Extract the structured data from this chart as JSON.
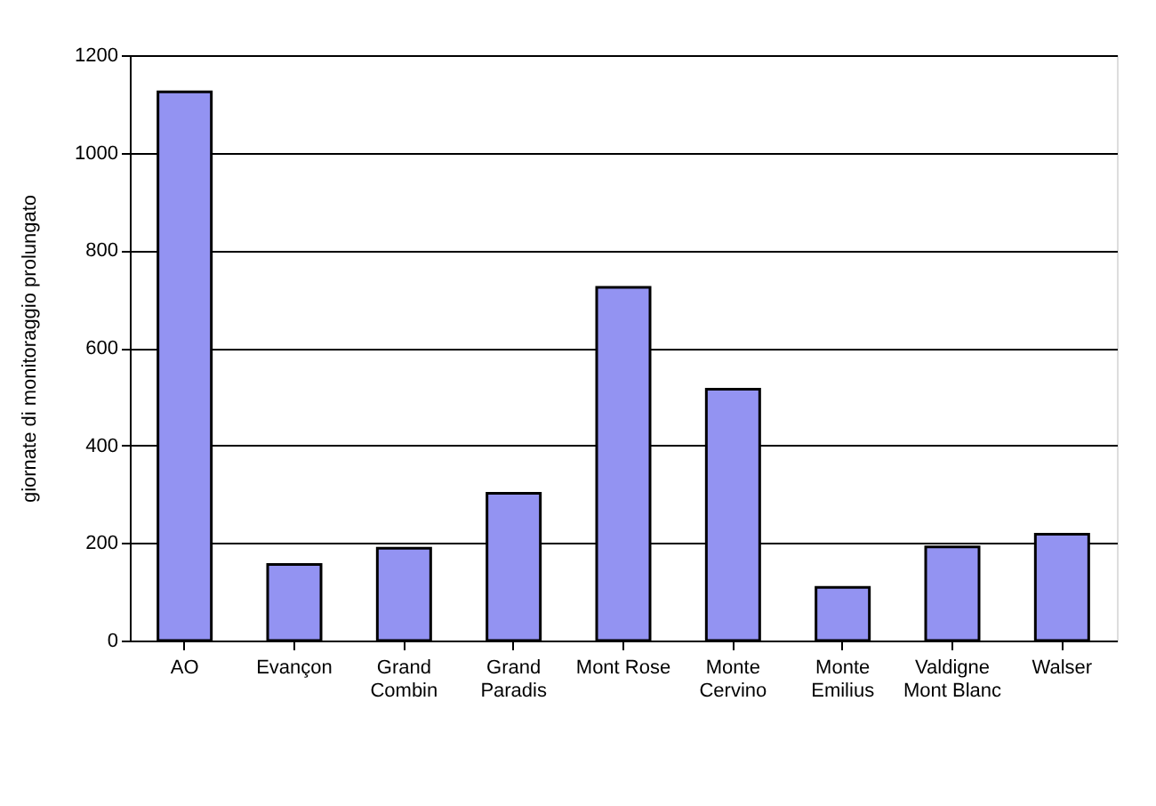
{
  "chart_data": {
    "type": "bar",
    "ylabel": "giornate di monitoraggio prolungato",
    "categories": [
      "AO",
      "Evançon",
      "Grand\nCombin",
      "Grand\nParadis",
      "Mont Rose",
      "Monte\nCervino",
      "Monte\nEmilius",
      "Valdigne\nMont Blanc",
      "Walser"
    ],
    "values": [
      1125,
      156,
      189,
      302,
      724,
      515,
      109,
      192,
      218
    ],
    "color": "#9393f2",
    "ylim": [
      0,
      1200
    ],
    "yticks": [
      0,
      200,
      400,
      600,
      800,
      1000,
      1200
    ],
    "grid": "y"
  }
}
